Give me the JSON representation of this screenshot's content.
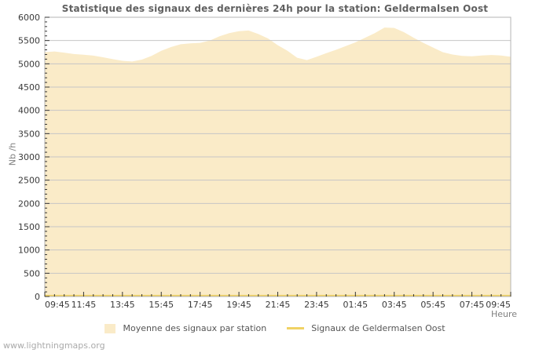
{
  "page": {
    "watermark": "www.lightningmaps.org"
  },
  "chart_data": {
    "type": "area",
    "title": "Statistique des signaux des dernières 24h pour la station: Geldermalsen Oost",
    "xlabel": "Heure",
    "ylabel": "Nb /h",
    "ylim": [
      0,
      6000
    ],
    "y_ticks": [
      0,
      500,
      1000,
      1500,
      2000,
      2500,
      3000,
      3500,
      4000,
      4500,
      5000,
      5500,
      6000
    ],
    "y_minor_step": 100,
    "x_tick_labels": [
      "09:45",
      "11:45",
      "13:45",
      "15:45",
      "17:45",
      "19:45",
      "21:45",
      "23:45",
      "01:45",
      "03:45",
      "05:45",
      "07:45",
      "09:45"
    ],
    "x_minor_divisions_per_major": 4,
    "grid": "horizontal-only",
    "legend_position": "bottom-center",
    "colors": {
      "area_fill": "#FAEBC8",
      "station_line": "#F0D264",
      "gridline": "#C6C6C6",
      "plot_border": "#B4B4B4",
      "tick": "#333333",
      "tick_label_text": "#3A3A3A",
      "title_text": "#606060",
      "axis_title_text": "#808080",
      "legend_text": "#555555",
      "watermark_text": "#AAAAAA"
    },
    "series": [
      {
        "name": "Moyenne des signaux par station",
        "type": "area",
        "sample_interval_minutes": 30,
        "values": [
          5250,
          5265,
          5240,
          5210,
          5195,
          5175,
          5140,
          5100,
          5065,
          5050,
          5090,
          5170,
          5280,
          5360,
          5420,
          5440,
          5450,
          5500,
          5590,
          5660,
          5700,
          5715,
          5640,
          5545,
          5400,
          5280,
          5130,
          5080,
          5150,
          5230,
          5300,
          5380,
          5460,
          5560,
          5660,
          5780,
          5770,
          5680,
          5560,
          5450,
          5350,
          5250,
          5200,
          5170,
          5160,
          5180,
          5190,
          5180,
          5150
        ]
      },
      {
        "name": "Signaux de Geldermalsen Oost",
        "type": "line",
        "values_constant": 20
      }
    ]
  }
}
